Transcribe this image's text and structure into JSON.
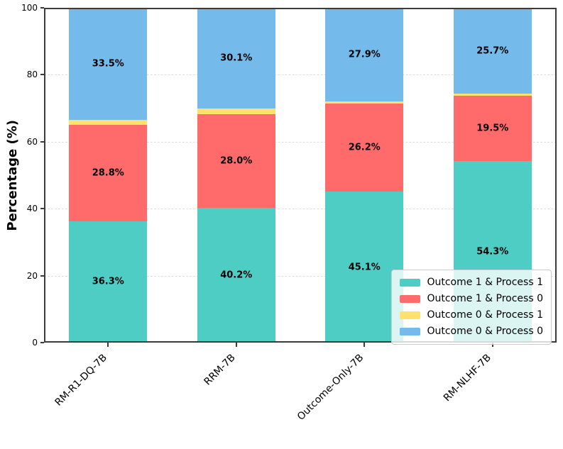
{
  "chart_data": {
    "type": "bar",
    "stacked": true,
    "title": "",
    "xlabel": "",
    "ylabel": "Percentage (%)",
    "ylim": [
      0,
      100
    ],
    "yticks": [
      0,
      20,
      40,
      60,
      80,
      100
    ],
    "grid": "horizontal-dashed",
    "legend_position": "lower right",
    "categories": [
      "RM-R1-DQ-7B",
      "RRM-7B",
      "Outcome-Only-7B",
      "RM-NLHF-7B"
    ],
    "series": [
      {
        "name": "Outcome 1 & Process 1",
        "color": "#4ECDC4",
        "values": [
          36.3,
          40.2,
          45.1,
          54.3
        ],
        "labels": [
          "36.3%",
          "40.2%",
          "45.1%",
          "54.3%"
        ]
      },
      {
        "name": "Outcome 1 & Process 0",
        "color": "#FF6B6B",
        "values": [
          28.8,
          28.0,
          26.2,
          19.5
        ],
        "labels": [
          "28.8%",
          "28.0%",
          "26.2%",
          "19.5%"
        ]
      },
      {
        "name": "Outcome 0 & Process 1",
        "color": "#FFE26D",
        "values": [
          1.4,
          1.7,
          0.8,
          0.5
        ],
        "labels": [
          "",
          "",
          "",
          ""
        ]
      },
      {
        "name": "Outcome 0 & Process 0",
        "color": "#74BBEC",
        "values": [
          33.5,
          30.1,
          27.9,
          25.7
        ],
        "labels": [
          "33.5%",
          "30.1%",
          "27.9%",
          "25.7%"
        ]
      }
    ],
    "colors": {
      "spine": "#3b3b3b",
      "gridline": "#dedede",
      "label_text": "#000000"
    }
  }
}
